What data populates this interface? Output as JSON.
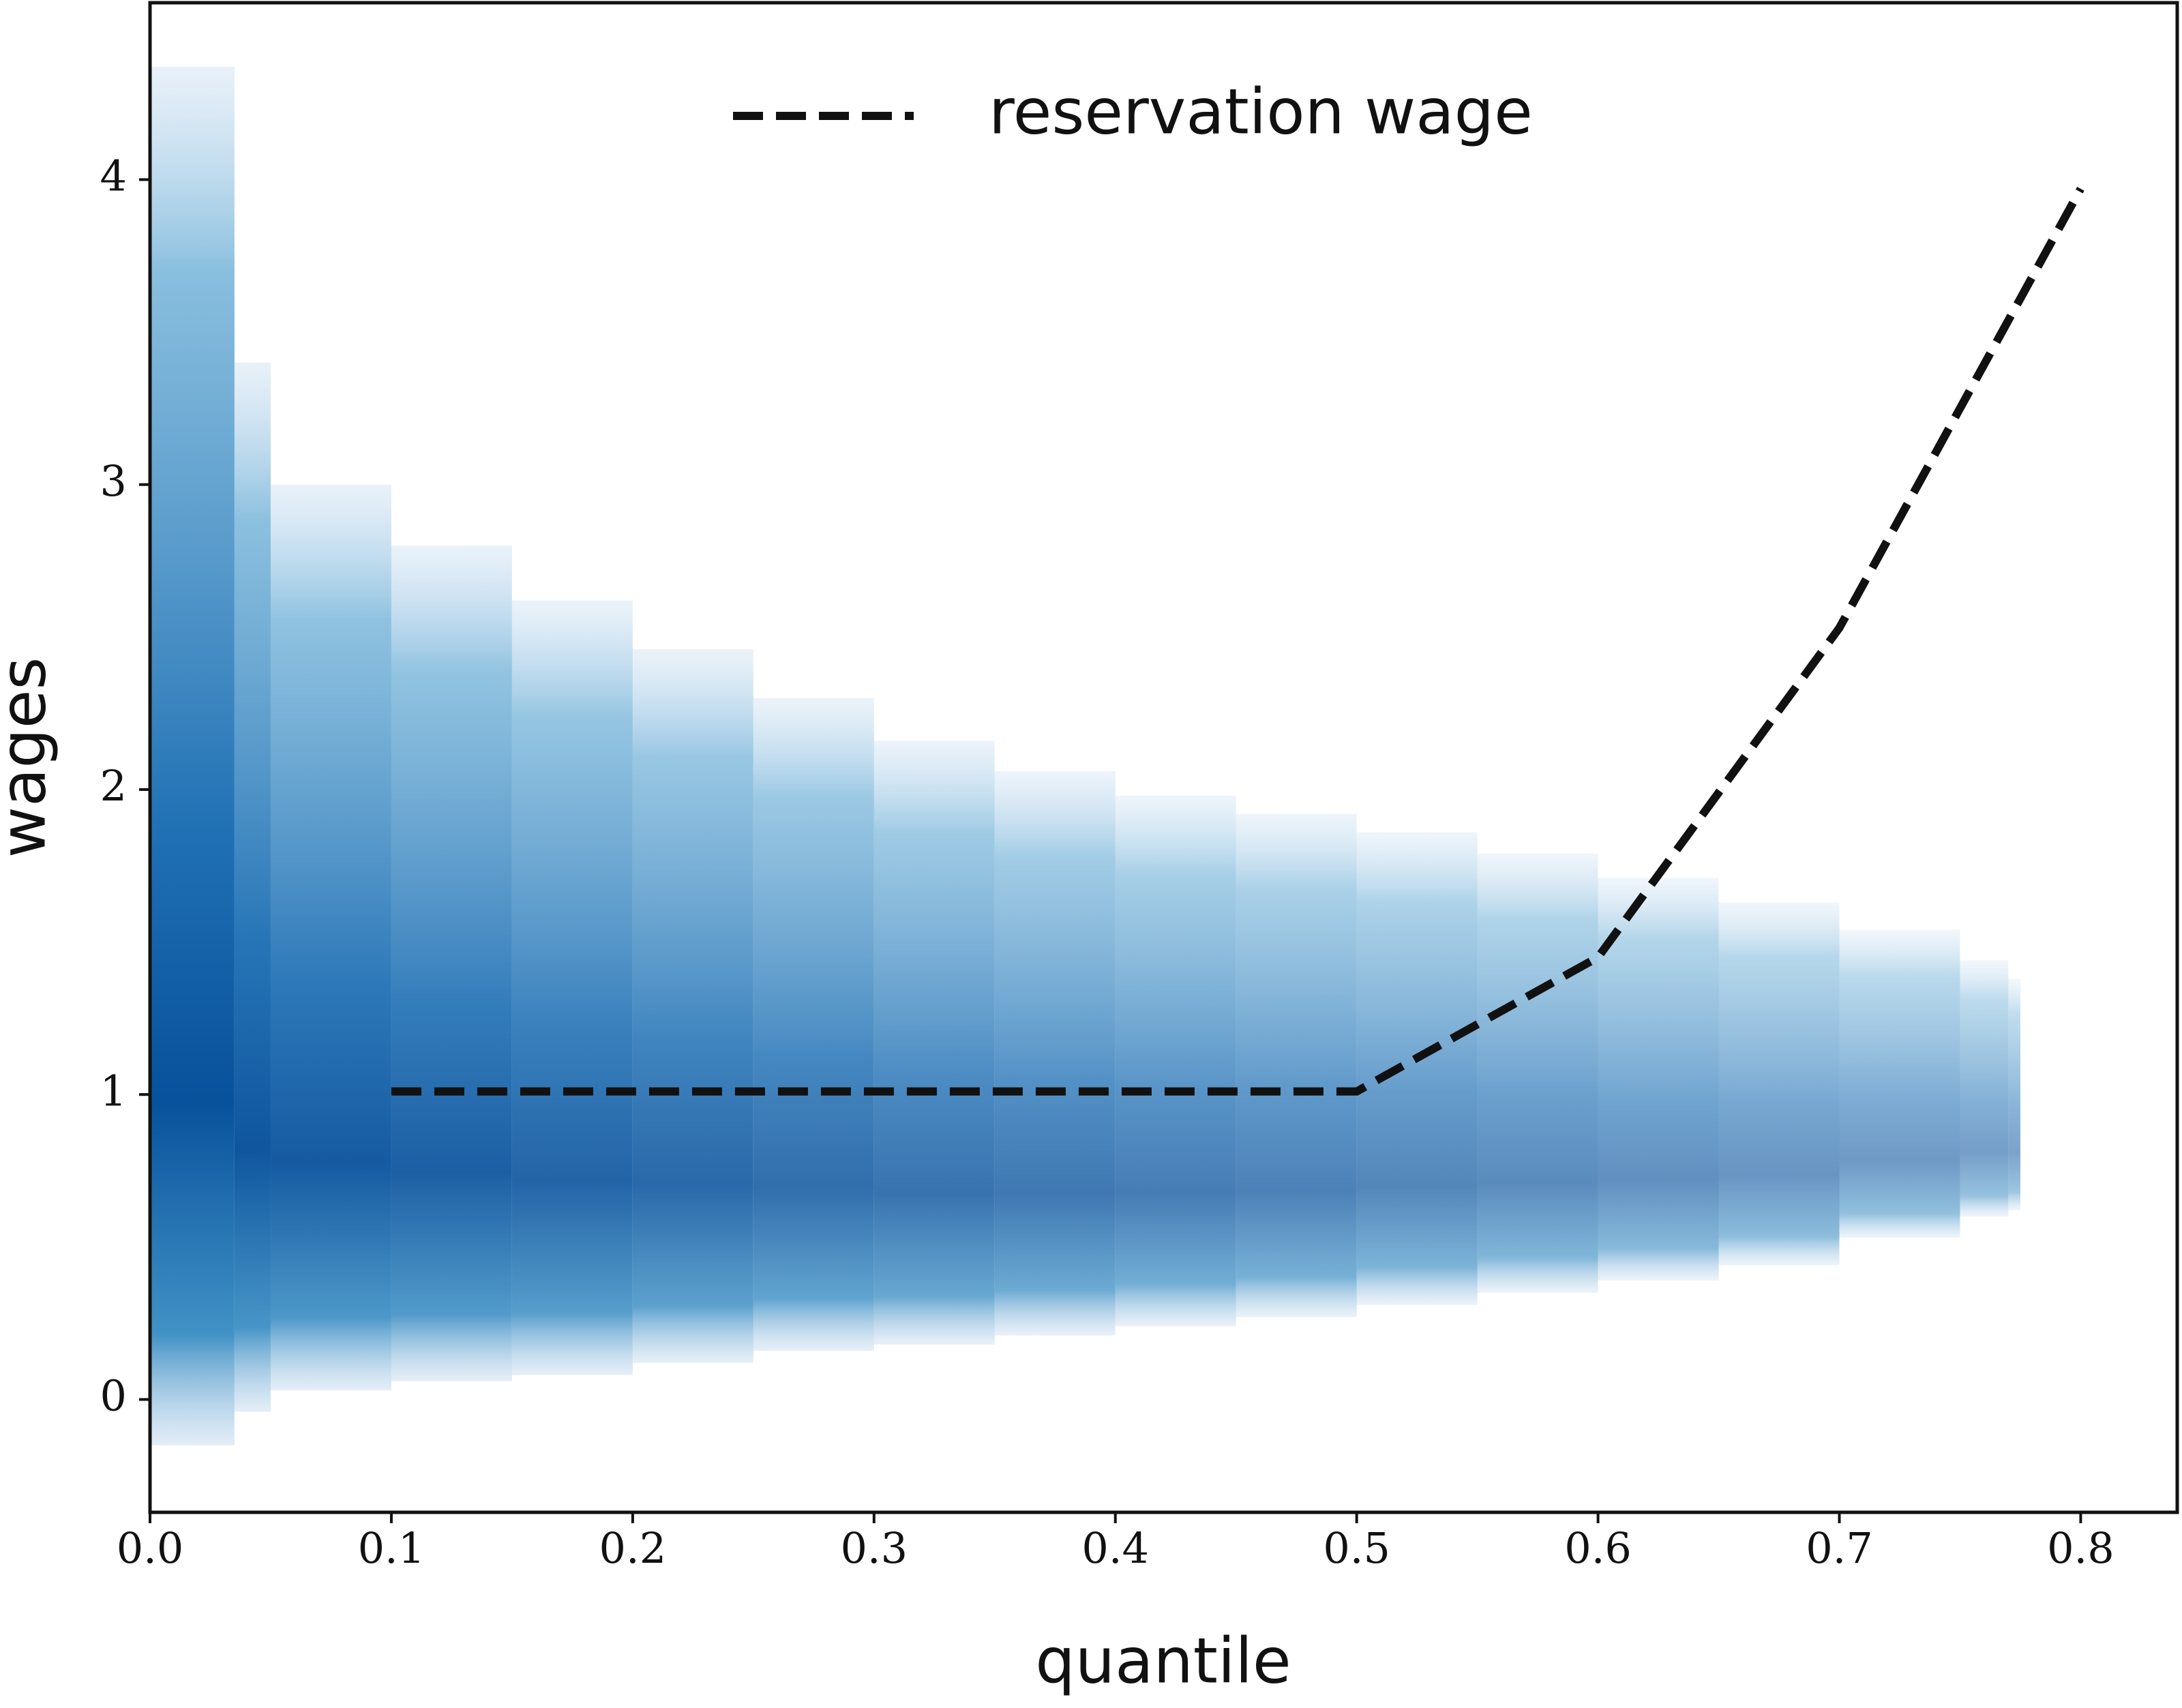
{
  "chart_data": {
    "type": "line",
    "xlabel": "quantile",
    "ylabel": "wages",
    "xlim": [
      0,
      0.84
    ],
    "ylim": [
      -0.37,
      4.58
    ],
    "xticks": [
      {
        "value": 0,
        "label": "0.0"
      },
      0.1,
      0.2,
      0.3,
      0.4,
      0.5,
      0.6,
      0.7,
      0.8
    ],
    "yticks": [
      0,
      1,
      2,
      3,
      4
    ],
    "legend": "upper center",
    "series": [
      {
        "name": "reservation wage",
        "color": "#111111",
        "style": "dashed",
        "x": [
          0.1,
          0.2,
          0.3,
          0.4,
          0.5,
          0.6,
          0.7,
          0.8
        ],
        "values": [
          1.01,
          1.01,
          1.01,
          1.01,
          1.01,
          1.45,
          2.53,
          3.97
        ]
      }
    ],
    "density": {
      "color": "#08306b",
      "bins": [
        0,
        0.035,
        0.05,
        0.1,
        0.15,
        0.2,
        0.25,
        0.3,
        0.35,
        0.4,
        0.45,
        0.5,
        0.55,
        0.6,
        0.65,
        0.7,
        0.75,
        0.77,
        0.775
      ],
      "low": [
        -0.15,
        -0.04,
        0.03,
        0.06,
        0.08,
        0.12,
        0.16,
        0.18,
        0.21,
        0.24,
        0.27,
        0.31,
        0.35,
        0.39,
        0.44,
        0.53,
        0.6,
        0.62
      ],
      "high": [
        4.37,
        3.4,
        3.0,
        2.8,
        2.62,
        2.46,
        2.3,
        2.16,
        2.06,
        1.98,
        1.92,
        1.86,
        1.79,
        1.71,
        1.63,
        1.54,
        1.44,
        1.38
      ]
    }
  }
}
